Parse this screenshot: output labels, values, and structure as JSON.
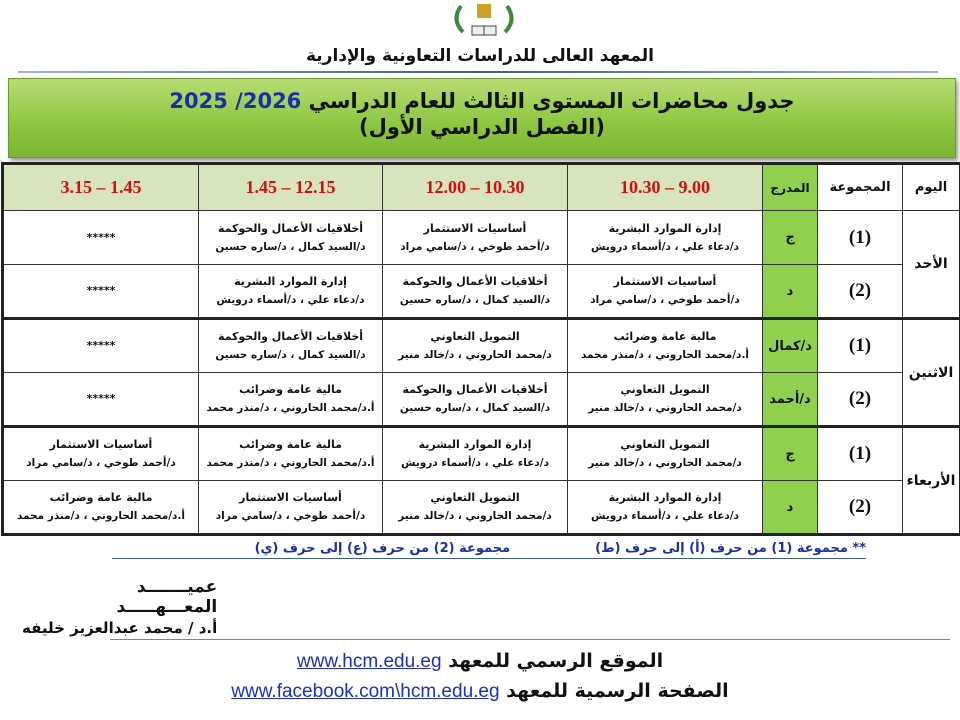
{
  "header": {
    "institute": "المعهد العالى للدراسات التعاونية والإدارية",
    "title": "جدول محاضرات المستوى الثالث للعام الدراسي",
    "year": "2025 /2026",
    "semester": "(الفصل الدراسي الأول)",
    "logo_icon": "institute-emblem-icon"
  },
  "table": {
    "headers": {
      "day": "اليوم",
      "group": "المجموعة",
      "hall": "المدرج",
      "slots": [
        "10.30 – 9.00",
        "12.00 – 10.30",
        "1.45 – 12.15",
        "3.15 – 1.45"
      ]
    },
    "days": [
      {
        "day": "الأحد",
        "groups": [
          {
            "group": "(1)",
            "hall": "ج",
            "cells": [
              {
                "course": "إدارة الموارد البشرية",
                "staff": "د/دعاء علي ، د/أسماء درويش"
              },
              {
                "course": "أساسيات الاستثمار",
                "staff": "د/أحمد طوخي ، د/سامي مراد"
              },
              {
                "course": "أخلاقيات الأعمال والحوكمة",
                "staff": "د/السيد كمال ، د/ساره حسين"
              },
              {
                "course": "*****",
                "staff": ""
              }
            ]
          },
          {
            "group": "(2)",
            "hall": "د",
            "cells": [
              {
                "course": "أساسيات الاستثمار",
                "staff": "د/أحمد طوخي ، د/سامي مراد"
              },
              {
                "course": "أخلاقيات الأعمال والحوكمة",
                "staff": "د/السيد كمال ، د/ساره حسين"
              },
              {
                "course": "إدارة الموارد البشرية",
                "staff": "د/دعاء علي ، د/أسماء درويش"
              },
              {
                "course": "*****",
                "staff": ""
              }
            ]
          }
        ]
      },
      {
        "day": "الاثنين",
        "groups": [
          {
            "group": "(1)",
            "hall": "د/كمال",
            "cells": [
              {
                "course": "مالية عامة وضرائب",
                "staff": "أ.د/محمد الحاروني ، د/منذر محمد"
              },
              {
                "course": "التمويل التعاوني",
                "staff": "د/محمد الحاروني ، د/خالد منير"
              },
              {
                "course": "أخلاقيات الأعمال والحوكمة",
                "staff": "د/السيد كمال ، د/ساره حسين"
              },
              {
                "course": "*****",
                "staff": ""
              }
            ]
          },
          {
            "group": "(2)",
            "hall": "د/أحمد",
            "cells": [
              {
                "course": "التمويل التعاوني",
                "staff": "د/محمد الحاروني ، د/خالد منير"
              },
              {
                "course": "أخلاقيات الأعمال والحوكمة",
                "staff": "د/السيد كمال ، د/ساره حسين"
              },
              {
                "course": "مالية عامة وضرائب",
                "staff": "أ.د/محمد الحاروني ، د/منذر محمد"
              },
              {
                "course": "*****",
                "staff": ""
              }
            ]
          }
        ]
      },
      {
        "day": "الأربعاء",
        "groups": [
          {
            "group": "(1)",
            "hall": "ج",
            "cells": [
              {
                "course": "التمويل التعاوني",
                "staff": "د/محمد الحاروني ، د/خالد منير"
              },
              {
                "course": "إدارة الموارد البشرية",
                "staff": "د/دعاء علي ، د/أسماء درويش"
              },
              {
                "course": "مالية عامة وضرائب",
                "staff": "أ.د/محمد الحاروني ، د/منذر محمد"
              },
              {
                "course": "أساسيات الاستثمار",
                "staff": "د/أحمد طوخي ، د/سامي مراد"
              }
            ]
          },
          {
            "group": "(2)",
            "hall": "د",
            "cells": [
              {
                "course": "إدارة الموارد البشرية",
                "staff": "د/دعاء علي ، د/أسماء درويش"
              },
              {
                "course": "التمويل التعاوني",
                "staff": "د/محمد الحاروني ، د/خالد منير"
              },
              {
                "course": "أساسيات الاستثمار",
                "staff": "د/أحمد طوخي ، د/سامي مراد"
              },
              {
                "course": "مالية عامة وضرائب",
                "staff": "أ.د/محمد الحاروني ، د/منذر محمد"
              }
            ]
          }
        ]
      }
    ]
  },
  "note": {
    "group1": "** مجموعة (1) من حرف (أ) إلى حرف (ط)",
    "group2": "مجموعة (2) من حرف (ع) إلى حرف (ي)"
  },
  "signature": {
    "role": "عميـــــــد المعـــهـــــد",
    "name": "أ.د / محمد عبدالعزيز خليفه"
  },
  "footer": {
    "website_label": "الموقع الرسمي للمعهد",
    "website_url": "www.hcm.edu.eg",
    "facebook_label": "الصفحة الرسمية للمعهد",
    "facebook_url": "www.facebook.com\\hcm.edu.eg"
  },
  "colors": {
    "banner": "#8cc63f",
    "hall": "#8fd14f",
    "time": "#d01010",
    "year": "#1a2eaa",
    "link": "#1a2ecc"
  }
}
